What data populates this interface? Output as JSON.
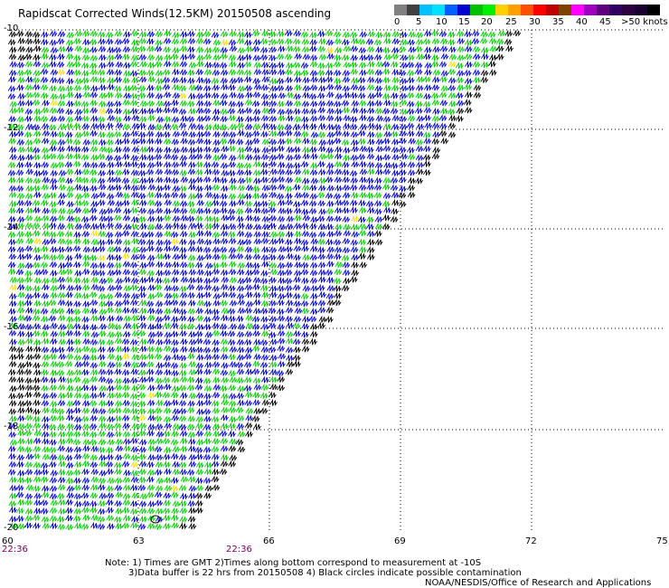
{
  "title": "Rapidscat Corrected Winds(12.5KM) 20150508 ascending",
  "colorbar": {
    "swatches": [
      "#808080",
      "#404040",
      "#00c0ff",
      "#00e0ff",
      "#0060ff",
      "#0000d0",
      "#00c000",
      "#00f000",
      "#ffd000",
      "#ffa000",
      "#ff5000",
      "#ff0000",
      "#c00000",
      "#804000",
      "#ff00ff",
      "#a000c0",
      "#600080",
      "#300060",
      "#2a0040",
      "#1a0030",
      "#000000"
    ],
    "labels": [
      "0",
      "5",
      "10",
      "15",
      "20",
      "25",
      "30",
      "35",
      "40",
      "45",
      ">50 knots"
    ]
  },
  "axes": {
    "y_labels": [
      "-10",
      "-12",
      "-14",
      "-16",
      "-18",
      "-20"
    ],
    "x_labels": [
      "60",
      "63",
      "66",
      "69",
      "72",
      "75"
    ],
    "time_labels": [
      "22:36",
      "22:36"
    ]
  },
  "notes": {
    "line1": "Note: 1) Times are GMT 2)Times along bottom correspond to measurement at -10S",
    "line2": "3)Data buffer is 22 hrs from 20150508 4) Black circles indicate possible contamination",
    "credit": "NOAA/NESDIS/Office of Research and Applications"
  },
  "wind_colors": {
    "blue": "#0000cc",
    "green": "#00cc00",
    "yellow": "#ffdd00",
    "black": "#000000"
  }
}
